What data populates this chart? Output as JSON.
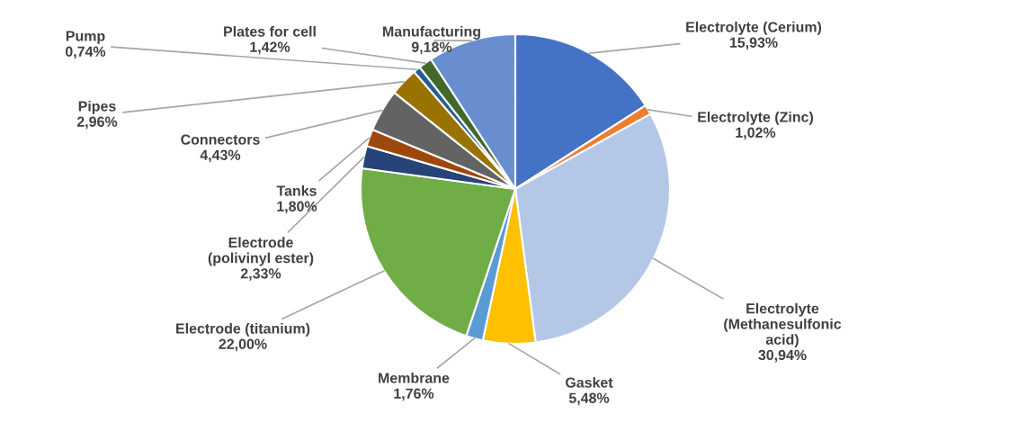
{
  "chart_data": {
    "type": "pie",
    "categories": [
      "Electrolyte (Cerium)",
      "Electrolyte (Zinc)",
      "Electrolyte\n(Methanesulfonic\nacid)",
      "Gasket",
      "Membrane",
      "Electrode (titanium)",
      "Electrode\n(polivinyl ester)",
      "Tanks",
      "Connectors",
      "Pipes",
      "Pump",
      "Plates for cell",
      "Manufacturing"
    ],
    "values": [
      15.93,
      1.02,
      30.94,
      5.48,
      1.76,
      22.0,
      2.33,
      1.8,
      4.43,
      2.96,
      0.74,
      1.42,
      9.18
    ],
    "colors": [
      "#4472c4",
      "#ed7d31",
      "#b4c7e7",
      "#ffc000",
      "#5b9bd5",
      "#70ad47",
      "#264478",
      "#9e480e",
      "#636363",
      "#997300",
      "#255e91",
      "#43682b",
      "#698ed0"
    ],
    "value_labels": [
      "15,93%",
      "1,02%",
      "30,94%",
      "5,48%",
      "1,76%",
      "22,00%",
      "2,33%",
      "1,80%",
      "4,43%",
      "2,96%",
      "0,74%",
      "1,42%",
      "9,18%"
    ],
    "legend": false
  }
}
